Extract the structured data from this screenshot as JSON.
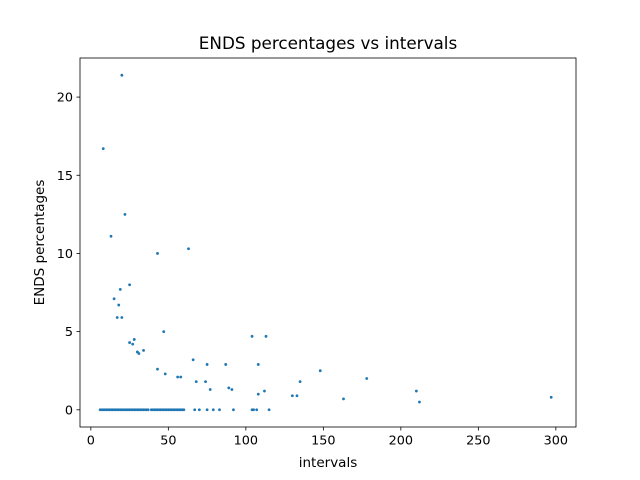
{
  "chart_data": {
    "type": "scatter",
    "title": "ENDS percentages vs intervals",
    "xlabel": "intervals",
    "ylabel": "ENDS percentages",
    "xlim": [
      -7,
      313
    ],
    "ylim": [
      -1.1,
      22.5
    ],
    "xticks": [
      0,
      50,
      100,
      150,
      200,
      250,
      300
    ],
    "yticks": [
      0,
      5,
      10,
      15,
      20
    ],
    "grid": false,
    "legend": "none",
    "marker_color": "#1f77b4",
    "points": [
      {
        "x": 8,
        "y": 16.7
      },
      {
        "x": 20,
        "y": 21.4
      },
      {
        "x": 13,
        "y": 11.1
      },
      {
        "x": 22,
        "y": 12.5
      },
      {
        "x": 43,
        "y": 10.0
      },
      {
        "x": 63,
        "y": 10.3
      },
      {
        "x": 25,
        "y": 8.0
      },
      {
        "x": 19,
        "y": 7.7
      },
      {
        "x": 15,
        "y": 7.1
      },
      {
        "x": 18,
        "y": 6.7
      },
      {
        "x": 17,
        "y": 5.9
      },
      {
        "x": 20,
        "y": 5.9
      },
      {
        "x": 47,
        "y": 5.0
      },
      {
        "x": 28,
        "y": 4.5
      },
      {
        "x": 25,
        "y": 4.3
      },
      {
        "x": 27,
        "y": 4.2
      },
      {
        "x": 34,
        "y": 3.8
      },
      {
        "x": 30,
        "y": 3.7
      },
      {
        "x": 31,
        "y": 3.6
      },
      {
        "x": 66,
        "y": 3.2
      },
      {
        "x": 43,
        "y": 2.6
      },
      {
        "x": 48,
        "y": 2.3
      },
      {
        "x": 56,
        "y": 2.1
      },
      {
        "x": 58,
        "y": 2.1
      },
      {
        "x": 75,
        "y": 2.9
      },
      {
        "x": 87,
        "y": 2.9
      },
      {
        "x": 104,
        "y": 4.7
      },
      {
        "x": 113,
        "y": 4.7
      },
      {
        "x": 108,
        "y": 2.9
      },
      {
        "x": 68,
        "y": 1.8
      },
      {
        "x": 74,
        "y": 1.8
      },
      {
        "x": 77,
        "y": 1.3
      },
      {
        "x": 89,
        "y": 1.4
      },
      {
        "x": 91,
        "y": 1.3
      },
      {
        "x": 112,
        "y": 1.2
      },
      {
        "x": 108,
        "y": 1.0
      },
      {
        "x": 130,
        "y": 0.9
      },
      {
        "x": 133,
        "y": 0.9
      },
      {
        "x": 135,
        "y": 1.8
      },
      {
        "x": 148,
        "y": 2.5
      },
      {
        "x": 163,
        "y": 0.7
      },
      {
        "x": 178,
        "y": 2.0
      },
      {
        "x": 210,
        "y": 1.2
      },
      {
        "x": 212,
        "y": 0.5
      },
      {
        "x": 297,
        "y": 0.8
      },
      {
        "x": 6,
        "y": 0
      },
      {
        "x": 7,
        "y": 0
      },
      {
        "x": 8,
        "y": 0
      },
      {
        "x": 9,
        "y": 0
      },
      {
        "x": 10,
        "y": 0
      },
      {
        "x": 11,
        "y": 0
      },
      {
        "x": 12,
        "y": 0
      },
      {
        "x": 13,
        "y": 0
      },
      {
        "x": 14,
        "y": 0
      },
      {
        "x": 15,
        "y": 0
      },
      {
        "x": 16,
        "y": 0
      },
      {
        "x": 17,
        "y": 0
      },
      {
        "x": 18,
        "y": 0
      },
      {
        "x": 19,
        "y": 0
      },
      {
        "x": 20,
        "y": 0
      },
      {
        "x": 21,
        "y": 0
      },
      {
        "x": 22,
        "y": 0
      },
      {
        "x": 23,
        "y": 0
      },
      {
        "x": 24,
        "y": 0
      },
      {
        "x": 25,
        "y": 0
      },
      {
        "x": 26,
        "y": 0
      },
      {
        "x": 27,
        "y": 0
      },
      {
        "x": 28,
        "y": 0
      },
      {
        "x": 29,
        "y": 0
      },
      {
        "x": 30,
        "y": 0
      },
      {
        "x": 31,
        "y": 0
      },
      {
        "x": 32,
        "y": 0
      },
      {
        "x": 33,
        "y": 0
      },
      {
        "x": 34,
        "y": 0
      },
      {
        "x": 35,
        "y": 0
      },
      {
        "x": 36,
        "y": 0
      },
      {
        "x": 37,
        "y": 0
      },
      {
        "x": 39,
        "y": 0
      },
      {
        "x": 40,
        "y": 0
      },
      {
        "x": 41,
        "y": 0
      },
      {
        "x": 42,
        "y": 0
      },
      {
        "x": 43,
        "y": 0
      },
      {
        "x": 44,
        "y": 0
      },
      {
        "x": 45,
        "y": 0
      },
      {
        "x": 46,
        "y": 0
      },
      {
        "x": 47,
        "y": 0
      },
      {
        "x": 48,
        "y": 0
      },
      {
        "x": 49,
        "y": 0
      },
      {
        "x": 50,
        "y": 0
      },
      {
        "x": 51,
        "y": 0
      },
      {
        "x": 52,
        "y": 0
      },
      {
        "x": 53,
        "y": 0
      },
      {
        "x": 54,
        "y": 0
      },
      {
        "x": 55,
        "y": 0
      },
      {
        "x": 56,
        "y": 0
      },
      {
        "x": 57,
        "y": 0
      },
      {
        "x": 58,
        "y": 0
      },
      {
        "x": 59,
        "y": 0
      },
      {
        "x": 60,
        "y": 0
      },
      {
        "x": 67,
        "y": 0
      },
      {
        "x": 70,
        "y": 0
      },
      {
        "x": 75,
        "y": 0
      },
      {
        "x": 79,
        "y": 0
      },
      {
        "x": 83,
        "y": 0
      },
      {
        "x": 92,
        "y": 0
      },
      {
        "x": 104,
        "y": 0
      },
      {
        "x": 105,
        "y": 0
      },
      {
        "x": 107,
        "y": 0
      },
      {
        "x": 115,
        "y": 0
      }
    ]
  }
}
